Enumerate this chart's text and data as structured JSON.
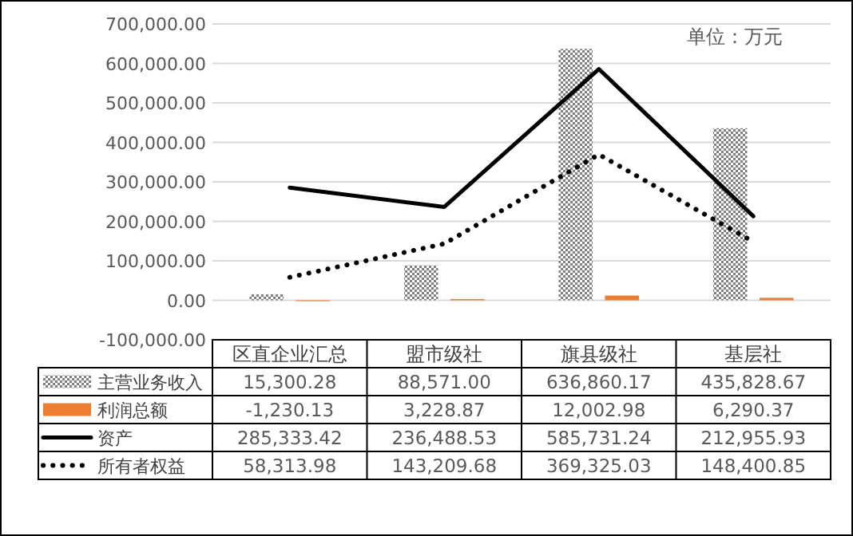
{
  "chart_data": {
    "type": "bar",
    "categories": [
      "区直企业汇总",
      "盟市级社",
      "旗县级社",
      "基层社"
    ],
    "series": [
      {
        "name": "主营业务收入",
        "color": "#808080",
        "values": [
          15300.28,
          88571.0,
          636860.17,
          435828.67
        ],
        "value_labels": [
          "15,300.28",
          "88,571.00",
          "636,860.17",
          "435,828.67"
        ]
      },
      {
        "name": "利润总额",
        "color": "#ed7d31",
        "values": [
          -1230.13,
          3228.87,
          12002.98,
          6290.37
        ],
        "value_labels": [
          "-1,230.13",
          "3,228.87",
          "12,002.98",
          "6,290.37"
        ]
      },
      {
        "name": "资产",
        "type": "line",
        "color": "#000000",
        "line_style": "solid",
        "values": [
          285333.42,
          236488.53,
          585731.24,
          212955.93
        ],
        "value_labels": [
          "285,333.42",
          "236,488.53",
          "585,731.24",
          "212,955.93"
        ]
      },
      {
        "name": "所有者权益",
        "type": "line",
        "color": "#000000",
        "line_style": "dotted",
        "values": [
          58313.98,
          143209.68,
          369325.03,
          148400.85
        ],
        "value_labels": [
          "58,313.98",
          "143,209.68",
          "369,325.03",
          "148,400.85"
        ]
      }
    ],
    "ylim": [
      -100000,
      700000
    ],
    "yticks": [
      {
        "value": -100000,
        "label": "-100,000.00"
      },
      {
        "value": 0,
        "label": "0.00"
      },
      {
        "value": 100000,
        "label": "100,000.00"
      },
      {
        "value": 200000,
        "label": "200,000.00"
      },
      {
        "value": 300000,
        "label": "300,000.00"
      },
      {
        "value": 400000,
        "label": "400,000.00"
      },
      {
        "value": 500000,
        "label": "500,000.00"
      },
      {
        "value": 600000,
        "label": "600,000.00"
      },
      {
        "value": 700000,
        "label": "700,000.00"
      }
    ],
    "grid": "y",
    "legend": "bottom",
    "annotations": [
      "单位：万元"
    ]
  }
}
